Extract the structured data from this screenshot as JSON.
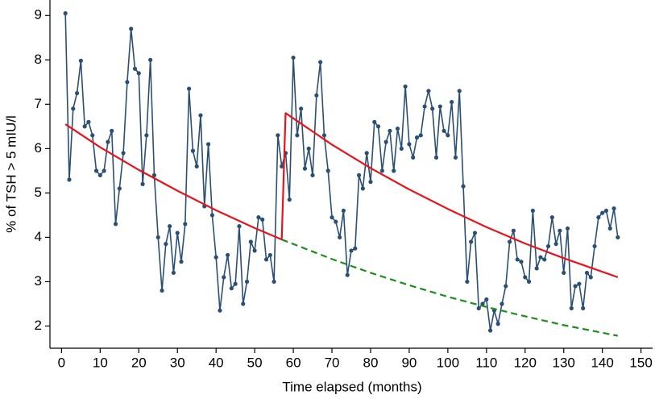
{
  "chart_data": {
    "type": "line",
    "xlabel": "Time elapsed (months)",
    "ylabel": "% of TSH > 5 mIU/l",
    "xlim": [
      -3,
      153
    ],
    "ylim": [
      1.5,
      9.35
    ],
    "xticks": [
      0,
      10,
      20,
      30,
      40,
      50,
      60,
      70,
      80,
      90,
      100,
      110,
      120,
      130,
      140,
      150
    ],
    "yticks": [
      2,
      3,
      4,
      5,
      6,
      7,
      8,
      9
    ],
    "series": [
      {
        "color": "#2b4f72",
        "markers": true,
        "dashed": false,
        "width": 1.6,
        "x": [
          1,
          2,
          3,
          4,
          5,
          6,
          7,
          8,
          9,
          10,
          11,
          12,
          13,
          14,
          15,
          16,
          17,
          18,
          19,
          20,
          21,
          22,
          23,
          24,
          25,
          26,
          27,
          28,
          29,
          30,
          31,
          32,
          33,
          34,
          35,
          36,
          37,
          38,
          39,
          40,
          41,
          42,
          43,
          44,
          45,
          46,
          47,
          48,
          49,
          50,
          51,
          52,
          53,
          54,
          55,
          56,
          57,
          58,
          59,
          60,
          61,
          62,
          63,
          64,
          65,
          66,
          67,
          68,
          69,
          70,
          71,
          72,
          73,
          74,
          75,
          76,
          77,
          78,
          79,
          80,
          81,
          82,
          83,
          84,
          85,
          86,
          87,
          88,
          89,
          90,
          91,
          92,
          93,
          94,
          95,
          96,
          97,
          98,
          99,
          100,
          101,
          102,
          103,
          104,
          105,
          106,
          107,
          108,
          109,
          110,
          111,
          112,
          113,
          114,
          115,
          116,
          117,
          118,
          119,
          120,
          121,
          122,
          123,
          124,
          125,
          126,
          127,
          128,
          129,
          130,
          131,
          132,
          133,
          134,
          135,
          136,
          137,
          138,
          139,
          140,
          141,
          142,
          143,
          144
        ],
        "values": [
          9.05,
          5.3,
          6.9,
          7.25,
          7.98,
          6.5,
          6.6,
          6.3,
          5.5,
          5.4,
          5.5,
          6.15,
          6.4,
          4.3,
          5.1,
          5.9,
          7.5,
          8.7,
          7.8,
          7.7,
          5.2,
          6.3,
          8.0,
          5.4,
          4.0,
          2.8,
          3.85,
          4.25,
          3.2,
          4.1,
          3.45,
          4.3,
          7.35,
          5.95,
          5.6,
          6.75,
          4.7,
          6.1,
          4.5,
          3.55,
          2.35,
          3.1,
          3.6,
          2.85,
          2.95,
          4.25,
          2.5,
          3.0,
          3.9,
          3.7,
          4.45,
          4.4,
          3.5,
          3.6,
          3.0,
          6.3,
          5.6,
          5.9,
          4.85,
          8.05,
          6.3,
          6.9,
          5.55,
          6.0,
          5.4,
          7.2,
          7.95,
          6.3,
          5.5,
          4.45,
          4.35,
          4.0,
          4.6,
          3.15,
          3.7,
          3.75,
          5.4,
          5.1,
          5.9,
          5.25,
          6.6,
          6.5,
          5.5,
          6.15,
          6.4,
          5.5,
          6.45,
          6.0,
          7.4,
          6.1,
          5.8,
          6.25,
          6.3,
          6.95,
          7.3,
          6.9,
          5.8,
          6.95,
          6.4,
          6.3,
          7.05,
          5.8,
          7.3,
          5.15,
          3.0,
          3.9,
          4.1,
          2.4,
          2.5,
          2.6,
          1.9,
          2.35,
          2.05,
          2.5,
          2.9,
          3.9,
          4.15,
          3.5,
          3.45,
          3.1,
          3.0,
          4.6,
          3.3,
          3.55,
          3.5,
          3.8,
          4.45,
          3.85,
          4.15,
          3.2,
          4.2,
          2.4,
          2.9,
          2.95,
          2.4,
          3.2,
          3.1,
          3.8,
          4.45,
          4.55,
          4.6,
          4.2,
          4.65,
          4.0
        ]
      },
      {
        "color": "#e8141b",
        "markers": false,
        "dashed": false,
        "width": 2.2,
        "x": [
          1,
          10,
          20,
          30,
          40,
          50,
          57,
          58,
          70,
          80,
          90,
          100,
          110,
          120,
          130,
          144
        ],
        "values": [
          6.55,
          6.03,
          5.52,
          5.05,
          4.61,
          4.21,
          3.95,
          6.8,
          6.09,
          5.56,
          5.08,
          4.64,
          4.23,
          3.86,
          3.53,
          3.1
        ]
      },
      {
        "color": "#1e8c1e",
        "markers": false,
        "dashed": true,
        "width": 2.2,
        "x": [
          57,
          70,
          80,
          90,
          100,
          110,
          120,
          130,
          144
        ],
        "values": [
          3.95,
          3.51,
          3.2,
          2.92,
          2.66,
          2.43,
          2.22,
          2.02,
          1.78
        ]
      }
    ]
  }
}
